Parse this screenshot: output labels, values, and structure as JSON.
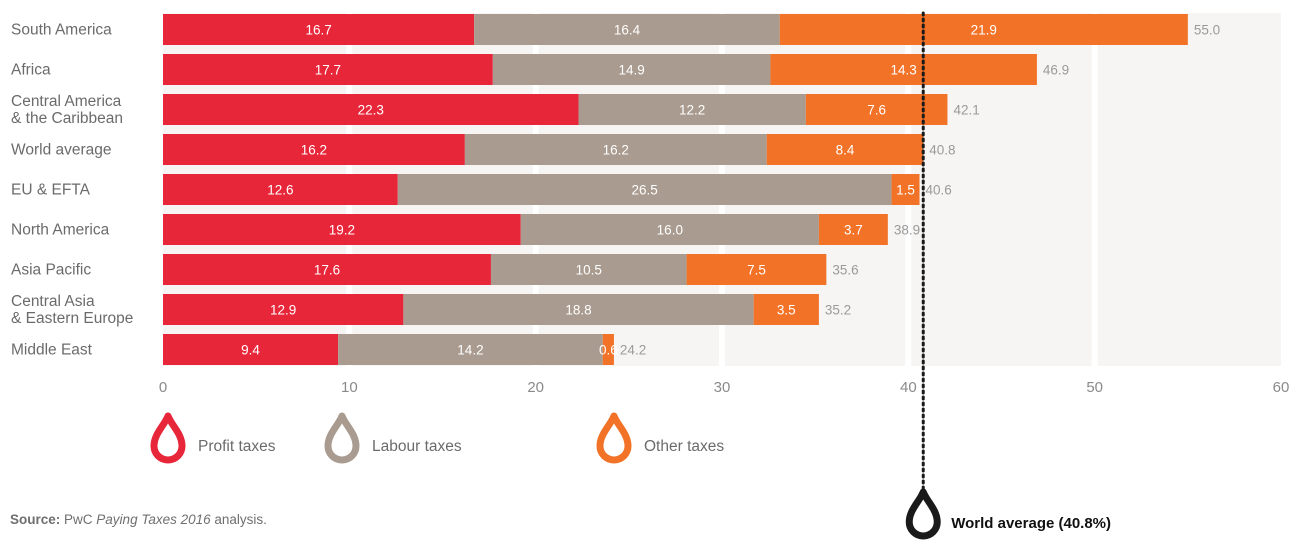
{
  "chart_data": {
    "type": "bar",
    "orientation": "horizontal",
    "stacked": true,
    "categories": [
      "South America",
      "Africa",
      "Central America\n& the Caribbean",
      "World average",
      "EU & EFTA",
      "North America",
      "Asia Pacific",
      "Central Asia\n& Eastern Europe",
      "Middle East"
    ],
    "series": [
      {
        "name": "Profit taxes",
        "color": "#e8263a",
        "values": [
          16.7,
          17.7,
          22.3,
          16.2,
          12.6,
          19.2,
          17.6,
          12.9,
          9.4
        ]
      },
      {
        "name": "Labour taxes",
        "color": "#a99b8f",
        "values": [
          16.4,
          14.9,
          12.2,
          16.2,
          26.5,
          16.0,
          10.5,
          18.8,
          14.2
        ]
      },
      {
        "name": "Other taxes",
        "color": "#f27227",
        "values": [
          21.9,
          14.3,
          7.6,
          8.4,
          1.5,
          3.7,
          7.5,
          3.5,
          0.6
        ]
      }
    ],
    "totals": [
      "55.0",
      "46.9",
      "42.1",
      "40.8",
      "40.6",
      "38.9",
      "35.6",
      "35.2",
      "24.2"
    ],
    "xlim": [
      0,
      60
    ],
    "xticks": [
      0,
      10,
      20,
      30,
      40,
      50,
      60
    ],
    "grid": true,
    "legend_position": "bottom",
    "reference_line": {
      "value": 40.8,
      "label": "World average (40.8%)",
      "color": "#1a1a1a"
    }
  },
  "source": {
    "prefix": "Source:",
    "title": "PwC Paying Taxes 2016",
    "suffix": " analysis."
  }
}
